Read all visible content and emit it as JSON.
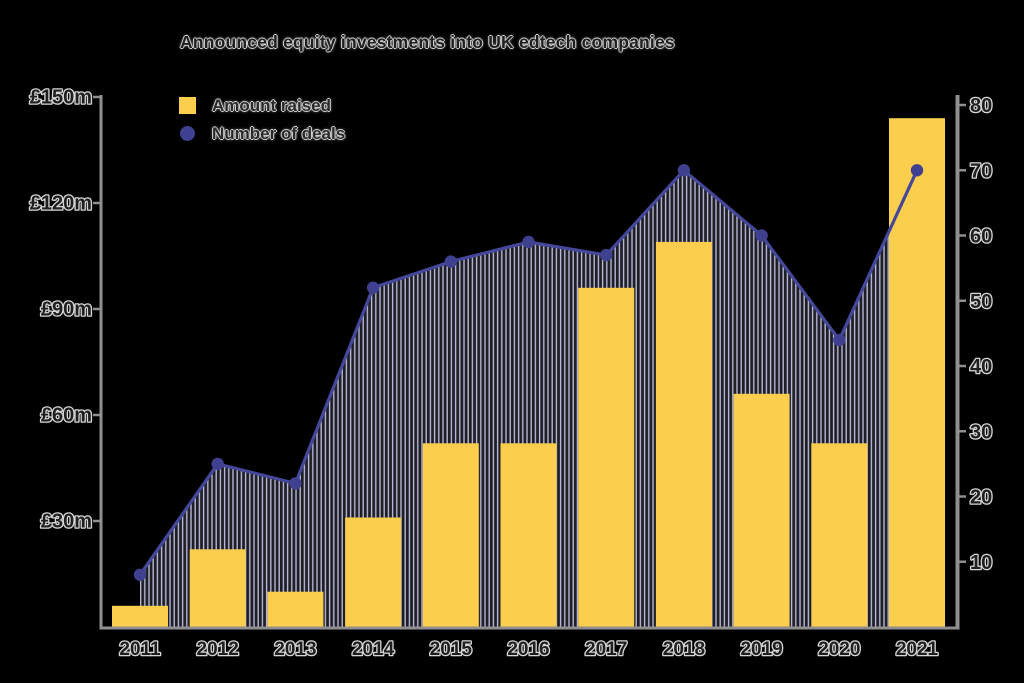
{
  "title": "Announced equity investments into UK edtech companies",
  "legend": {
    "bar_label": "Amount raised",
    "line_label": "Number of deals"
  },
  "chart_data": {
    "type": "combo",
    "categories": [
      "2011",
      "2012",
      "2013",
      "2014",
      "2015",
      "2016",
      "2017",
      "2018",
      "2019",
      "2020",
      "2021"
    ],
    "series": [
      {
        "name": "Amount raised",
        "type": "bar",
        "axis": "left",
        "unit": "GBP millions",
        "values": [
          6,
          22,
          10,
          31,
          52,
          52,
          96,
          109,
          66,
          52,
          144
        ]
      },
      {
        "name": "Number of deals",
        "type": "line",
        "axis": "right",
        "values": [
          8,
          25,
          22,
          52,
          56,
          59,
          57,
          70,
          60,
          44,
          70
        ]
      }
    ],
    "left_axis": {
      "tick_labels": [
        "£150m",
        "£120m",
        "£90m",
        "£60m",
        "£30m"
      ],
      "tick_values": [
        150,
        120,
        90,
        60,
        30
      ],
      "range": [
        0,
        150
      ]
    },
    "right_axis": {
      "tick_labels": [
        "80",
        "70",
        "60",
        "50",
        "40",
        "30",
        "20",
        "10"
      ],
      "tick_values": [
        80,
        70,
        60,
        50,
        40,
        30,
        20,
        10
      ],
      "range": [
        0,
        80
      ]
    },
    "legend_position": "top-left-inside",
    "grid": false,
    "hatch_fill_under_line": true,
    "colors": {
      "bar": "#FBCF4D",
      "line": "#45479A",
      "marker": "#3F4190",
      "hatch_stripe": "#B7B8DB",
      "axis": "#8F8F8F",
      "text": "#1F1F1F",
      "text_halo": "#D6D6D6",
      "background": "#000000"
    }
  }
}
